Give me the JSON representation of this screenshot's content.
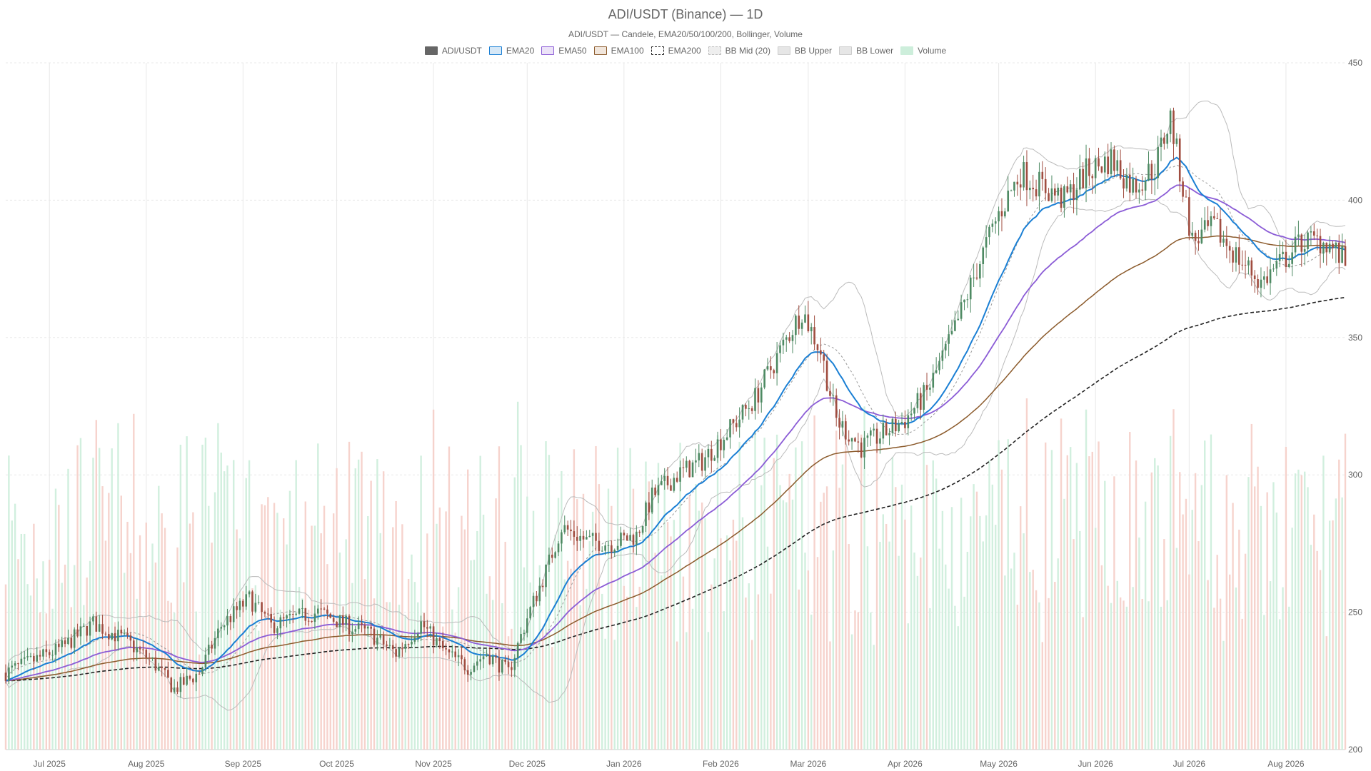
{
  "chart_data": {
    "type": "candlestick",
    "title": "ADI/USDT (Binance) — 1D",
    "subtitle": "ADI/USDT — Candele, EMA20/50/100/200, Bollinger, Volume",
    "ylim": [
      200,
      450
    ],
    "y_ticks": [
      200,
      250,
      300,
      350,
      400,
      450
    ],
    "x_range": [
      "2025-06-17",
      "2026-08-20"
    ],
    "x_ticks": [
      {
        "label": "Jul 2025",
        "date": "2025-07-01"
      },
      {
        "label": "Aug 2025",
        "date": "2025-08-01"
      },
      {
        "label": "Sep 2025",
        "date": "2025-09-01"
      },
      {
        "label": "Oct 2025",
        "date": "2025-10-01"
      },
      {
        "label": "Nov 2025",
        "date": "2025-11-01"
      },
      {
        "label": "Dec 2025",
        "date": "2025-12-01"
      },
      {
        "label": "Jan 2026",
        "date": "2026-01-01"
      },
      {
        "label": "Feb 2026",
        "date": "2026-02-01"
      },
      {
        "label": "Mar 2026",
        "date": "2026-03-01"
      },
      {
        "label": "Apr 2026",
        "date": "2026-04-01"
      },
      {
        "label": "May 2026",
        "date": "2026-05-01"
      },
      {
        "label": "Jun 2026",
        "date": "2026-06-01"
      },
      {
        "label": "Jul 2026",
        "date": "2026-07-01"
      },
      {
        "label": "Aug 2026",
        "date": "2026-08-01"
      }
    ],
    "legend": [
      {
        "name": "ADI/USDT",
        "color": "#666666",
        "fill": "#666666",
        "dash": false
      },
      {
        "name": "EMA20",
        "color": "#1a7fd4",
        "fill": "#d6e8f7",
        "dash": false
      },
      {
        "name": "EMA50",
        "color": "#8b5cd6",
        "fill": "#ece3f8",
        "dash": false
      },
      {
        "name": "EMA100",
        "color": "#8b5a2b",
        "fill": "#f1e6dc",
        "dash": false
      },
      {
        "name": "EMA200",
        "color": "#222222",
        "fill": "#ffffff",
        "dash": true
      },
      {
        "name": "BB Mid (20)",
        "color": "#bbbbbb",
        "fill": "#eeeeee",
        "dash": true
      },
      {
        "name": "BB Upper",
        "color": "#cccccc",
        "fill": "#e6e6e6",
        "dash": false
      },
      {
        "name": "BB Lower",
        "color": "#cccccc",
        "fill": "#e6e6e6",
        "dash": false
      },
      {
        "name": "Volume",
        "color": "#cdeedb",
        "fill": "#cdeedb",
        "dash": false
      }
    ],
    "colors": {
      "up": "#4e8a63",
      "down": "#a04d40",
      "volume_up": "#cdeedb",
      "volume_down": "#f6cfc8",
      "grid": "#e8e8e8"
    },
    "price_keypoints": [
      [
        "2025-06-17",
        228
      ],
      [
        "2025-06-25",
        232
      ],
      [
        "2025-07-05",
        237
      ],
      [
        "2025-07-15",
        246
      ],
      [
        "2025-07-25",
        240
      ],
      [
        "2025-08-03",
        232
      ],
      [
        "2025-08-10",
        222
      ],
      [
        "2025-08-18",
        228
      ],
      [
        "2025-08-25",
        245
      ],
      [
        "2025-09-03",
        255
      ],
      [
        "2025-09-10",
        245
      ],
      [
        "2025-09-18",
        248
      ],
      [
        "2025-09-25",
        250
      ],
      [
        "2025-10-05",
        245
      ],
      [
        "2025-10-12",
        242
      ],
      [
        "2025-10-20",
        235
      ],
      [
        "2025-10-28",
        246
      ],
      [
        "2025-11-05",
        235
      ],
      [
        "2025-11-12",
        230
      ],
      [
        "2025-11-18",
        235
      ],
      [
        "2025-11-25",
        228
      ],
      [
        "2025-12-01",
        248
      ],
      [
        "2025-12-07",
        265
      ],
      [
        "2025-12-12",
        281
      ],
      [
        "2025-12-20",
        276
      ],
      [
        "2025-12-28",
        275
      ],
      [
        "2026-01-05",
        278
      ],
      [
        "2026-01-10",
        292
      ],
      [
        "2026-01-18",
        300
      ],
      [
        "2026-01-26",
        305
      ],
      [
        "2026-02-05",
        318
      ],
      [
        "2026-02-12",
        328
      ],
      [
        "2026-02-20",
        345
      ],
      [
        "2026-02-27",
        360
      ],
      [
        "2026-03-05",
        345
      ],
      [
        "2026-03-10",
        320
      ],
      [
        "2026-03-18",
        310
      ],
      [
        "2026-03-25",
        315
      ],
      [
        "2026-04-01",
        320
      ],
      [
        "2026-04-08",
        330
      ],
      [
        "2026-04-16",
        350
      ],
      [
        "2026-04-24",
        375
      ],
      [
        "2026-05-01",
        395
      ],
      [
        "2026-05-08",
        410
      ],
      [
        "2026-05-15",
        405
      ],
      [
        "2026-05-22",
        400
      ],
      [
        "2026-05-29",
        410
      ],
      [
        "2026-06-06",
        415
      ],
      [
        "2026-06-13",
        405
      ],
      [
        "2026-06-20",
        412
      ],
      [
        "2026-06-25",
        430
      ],
      [
        "2026-07-02",
        385
      ],
      [
        "2026-07-09",
        390
      ],
      [
        "2026-07-16",
        380
      ],
      [
        "2026-07-24",
        370
      ],
      [
        "2026-07-31",
        378
      ],
      [
        "2026-08-06",
        385
      ],
      [
        "2026-08-14",
        385
      ],
      [
        "2026-08-20",
        377
      ]
    ]
  }
}
